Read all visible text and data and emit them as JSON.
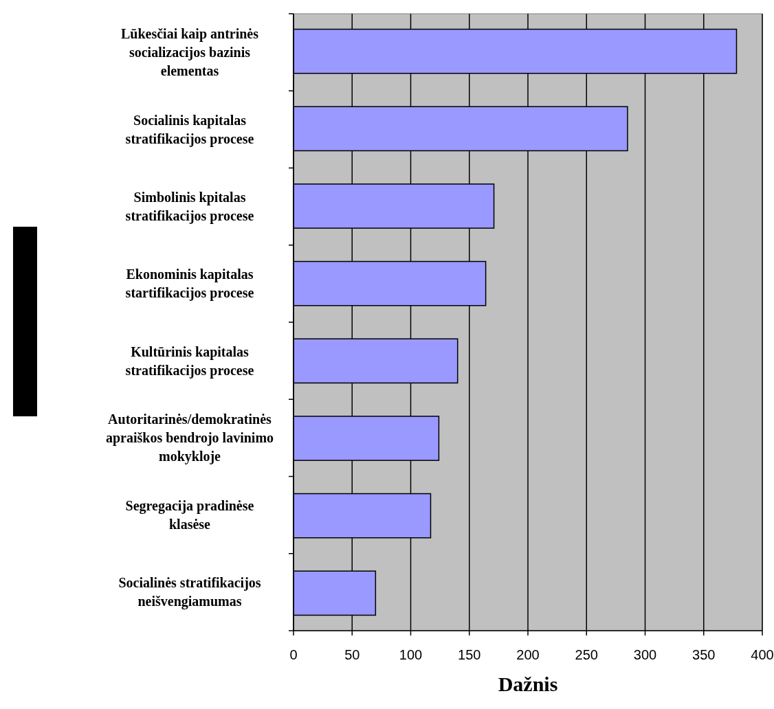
{
  "chart_data": {
    "type": "bar",
    "orientation": "horizontal",
    "xlabel": "Dažnis",
    "categories": [
      "Lūkesčiai kaip antrinės socializacijos bazinis elementas",
      "Socialinis kapitalas stratifikacijos procese",
      "Simbolinis kpitalas stratifikacijos procese",
      "Ekonominis kapitalas startifikacijos procese",
      "Kultūrinis kapitalas stratifikacijos procese",
      "Autoritarinės/demokratinės apraiškos bendrojo lavinimo mokykloje",
      "Segregacija pradinėse klasėse",
      "Socialinės stratifikacijos neišvengiamumas"
    ],
    "values": [
      378,
      285,
      171,
      164,
      140,
      124,
      117,
      70
    ],
    "color": "#9999ff",
    "xlim": [
      0,
      400
    ],
    "xticks": [
      0,
      50,
      100,
      150,
      200,
      250,
      300,
      350,
      400
    ],
    "grid": "x"
  }
}
